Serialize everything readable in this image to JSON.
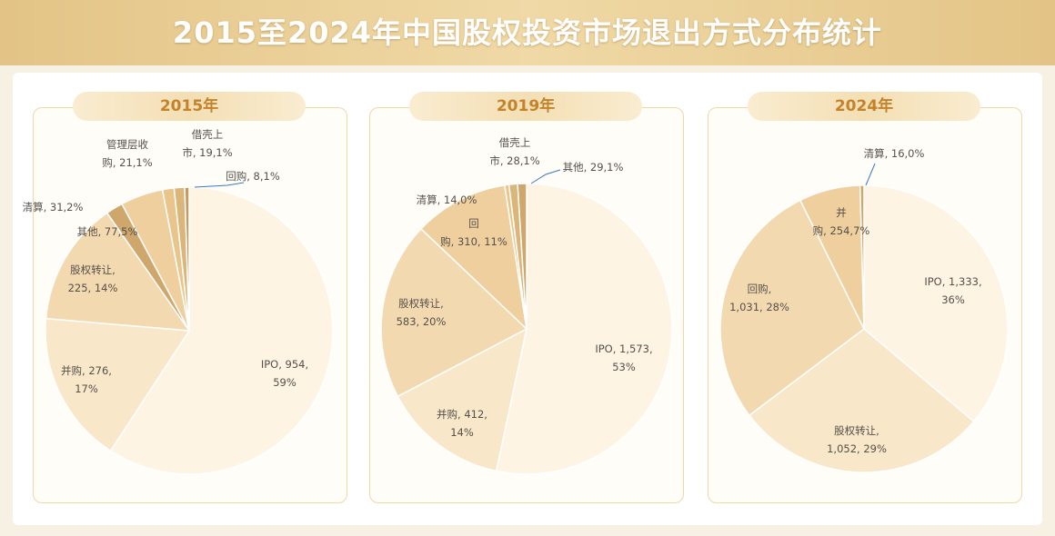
{
  "title": "2015至2024年中国股权投资市场退出方式分布统计",
  "chart_data": [
    {
      "type": "pie",
      "title": "2015年",
      "slices": [
        {
          "name": "IPO",
          "value": 954,
          "pct": 59,
          "lines": [
            "IPO, 954,",
            "59%"
          ]
        },
        {
          "name": "并购",
          "value": 276,
          "pct": 17,
          "lines": [
            "并购, 276,",
            "17%"
          ]
        },
        {
          "name": "股权转让",
          "value": 225,
          "pct": 14,
          "lines": [
            "股权转让,",
            "225, 14%"
          ]
        },
        {
          "name": "清算",
          "value": 31,
          "pct": 2,
          "lines": [
            "清算, 31,2%"
          ]
        },
        {
          "name": "其他",
          "value": 77,
          "pct": 5,
          "lines": [
            "其他, 77,5%"
          ]
        },
        {
          "name": "管理层收购",
          "value": 21,
          "pct": 1,
          "lines": [
            "管理层收",
            "购, 21,1%"
          ]
        },
        {
          "name": "借壳上市",
          "value": 19,
          "pct": 1,
          "lines": [
            "借壳上",
            "市, 19,1%"
          ]
        },
        {
          "name": "回购",
          "value": 8,
          "pct": 1,
          "lines": [
            "回购, 8,1%"
          ]
        }
      ]
    },
    {
      "type": "pie",
      "title": "2019年",
      "slices": [
        {
          "name": "IPO",
          "value": 1573,
          "pct": 53,
          "lines": [
            "IPO, 1,573,",
            "53%"
          ]
        },
        {
          "name": "并购",
          "value": 412,
          "pct": 14,
          "lines": [
            "并购, 412,",
            "14%"
          ]
        },
        {
          "name": "股权转让",
          "value": 583,
          "pct": 20,
          "lines": [
            "股权转让,",
            "583, 20%"
          ]
        },
        {
          "name": "回购",
          "value": 310,
          "pct": 11,
          "lines": [
            "回",
            "购, 310, 11%"
          ]
        },
        {
          "name": "清算",
          "value": 14,
          "pct": 0,
          "lines": [
            "清算, 14,0%"
          ]
        },
        {
          "name": "借壳上市",
          "value": 28,
          "pct": 1,
          "lines": [
            "借壳上",
            "市, 28,1%"
          ]
        },
        {
          "name": "其他",
          "value": 29,
          "pct": 1,
          "lines": [
            "其他, 29,1%"
          ]
        }
      ]
    },
    {
      "type": "pie",
      "title": "2024年",
      "slices": [
        {
          "name": "IPO",
          "value": 1333,
          "pct": 36,
          "lines": [
            "IPO, 1,333,",
            "36%"
          ]
        },
        {
          "name": "股权转让",
          "value": 1052,
          "pct": 29,
          "lines": [
            "股权转让,",
            "1,052, 29%"
          ]
        },
        {
          "name": "回购",
          "value": 1031,
          "pct": 28,
          "lines": [
            "回购,",
            "1,031, 28%"
          ]
        },
        {
          "name": "并购",
          "value": 254,
          "pct": 7,
          "lines": [
            "并",
            "购, 254,7%"
          ]
        },
        {
          "name": "清算",
          "value": 16,
          "pct": 0,
          "lines": [
            "清算, 16,0%"
          ]
        }
      ]
    }
  ],
  "colors": [
    "#fdf4e4",
    "#f8e7c9",
    "#f3d9b0",
    "#efcf9e",
    "#e9c58c",
    "#dcb57a",
    "#cfa66c",
    "#c49a62"
  ],
  "stroke_color": "#ffffff",
  "leader_color": "#3a78c8"
}
